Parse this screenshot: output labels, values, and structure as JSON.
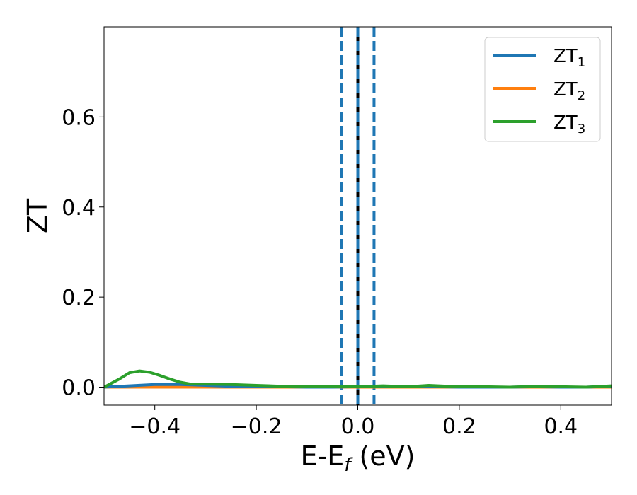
{
  "chart_data": {
    "type": "line",
    "title": "",
    "xlabel": {
      "main": "E-E",
      "sub": "f",
      "suffix": " (eV)"
    },
    "ylabel": "ZT",
    "xlim": [
      -0.5,
      0.5
    ],
    "ylim": [
      -0.04,
      0.8
    ],
    "xticks": [
      -0.4,
      -0.2,
      0.0,
      0.2,
      0.4
    ],
    "xtick_labels": [
      "−0.4",
      "−0.2",
      "0.0",
      "0.2",
      "0.4"
    ],
    "yticks": [
      0.0,
      0.2,
      0.4,
      0.6
    ],
    "ytick_labels": [
      "0.0",
      "0.2",
      "0.4",
      "0.6"
    ],
    "grid": false,
    "legend_position": "top-right",
    "series": [
      {
        "name": "ZT",
        "sub": "1",
        "color": "#1f77b4",
        "x": [
          -0.5,
          -0.45,
          -0.4,
          -0.35,
          -0.3,
          -0.25,
          -0.2,
          -0.15,
          -0.1,
          -0.05,
          0.0,
          0.05,
          0.1,
          0.15,
          0.2,
          0.25,
          0.3,
          0.35,
          0.4,
          0.45,
          0.5
        ],
        "y": [
          0.0,
          0.003,
          0.006,
          0.006,
          0.004,
          0.002,
          0.001,
          0.001,
          0.0,
          0.0,
          0.001,
          0.002,
          0.001,
          0.001,
          0.0,
          0.0,
          0.0,
          0.001,
          0.0,
          0.0,
          0.002
        ]
      },
      {
        "name": "ZT",
        "sub": "2",
        "color": "#ff7f0e",
        "x": [
          -0.5,
          -0.45,
          -0.4,
          -0.35,
          -0.3,
          -0.25,
          -0.2,
          -0.15,
          -0.1,
          -0.05,
          0.0,
          0.05,
          0.1,
          0.15,
          0.2,
          0.25,
          0.3,
          0.35,
          0.4,
          0.45,
          0.5
        ],
        "y": [
          0.0,
          0.0,
          0.0,
          0.0,
          0.0,
          0.0,
          0.0,
          0.0,
          0.0,
          0.0,
          0.0,
          0.0,
          0.0,
          0.0,
          0.0,
          0.0,
          0.0,
          0.0,
          0.0,
          0.0,
          0.0
        ]
      },
      {
        "name": "ZT",
        "sub": "3",
        "color": "#2ca02c",
        "x": [
          -0.5,
          -0.47,
          -0.45,
          -0.43,
          -0.41,
          -0.39,
          -0.37,
          -0.35,
          -0.33,
          -0.3,
          -0.25,
          -0.2,
          -0.15,
          -0.1,
          -0.05,
          0.0,
          0.05,
          0.1,
          0.14,
          0.2,
          0.25,
          0.3,
          0.35,
          0.4,
          0.45,
          0.5
        ],
        "y": [
          0.0,
          0.018,
          0.032,
          0.036,
          0.033,
          0.026,
          0.018,
          0.011,
          0.007,
          0.007,
          0.006,
          0.004,
          0.002,
          0.002,
          0.001,
          0.001,
          0.003,
          0.001,
          0.004,
          0.001,
          0.001,
          0.0,
          0.002,
          0.001,
          0.0,
          0.003
        ]
      }
    ],
    "vertical_lines": [
      {
        "x": 0.0,
        "color": "#000000",
        "style": "solid"
      },
      {
        "x": -0.032,
        "color": "#1f77b4",
        "style": "dashed"
      },
      {
        "x": 0.0,
        "color": "#1f77b4",
        "style": "dashed"
      },
      {
        "x": 0.032,
        "color": "#1f77b4",
        "style": "dashed"
      }
    ]
  }
}
